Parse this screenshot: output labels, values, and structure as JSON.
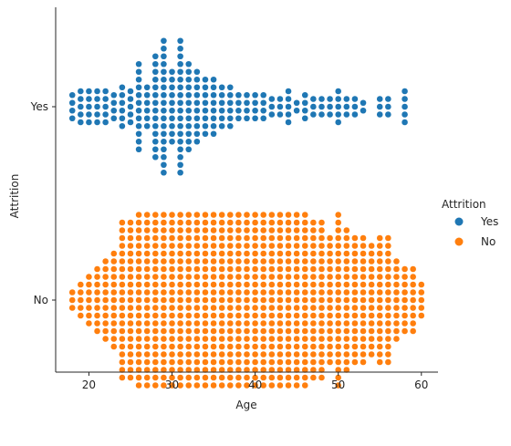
{
  "chart_data": {
    "type": "scatter",
    "style": "swarm",
    "title": "",
    "xlabel": "Age",
    "ylabel": "Attrition",
    "xlim": [
      16,
      62
    ],
    "xticks": [
      20,
      30,
      40,
      50,
      60
    ],
    "categories": [
      "Yes",
      "No"
    ],
    "legend": {
      "title": "Attrition",
      "placement": "right"
    },
    "series": [
      {
        "name": "Yes",
        "color": "#1f77b4",
        "counts_by_age": {
          "18": 4,
          "19": 5,
          "20": 5,
          "21": 5,
          "22": 5,
          "23": 4,
          "24": 6,
          "25": 5,
          "26": 12,
          "27": 6,
          "28": 14,
          "29": 18,
          "30": 10,
          "31": 18,
          "32": 12,
          "33": 10,
          "34": 8,
          "35": 8,
          "36": 6,
          "37": 6,
          "38": 4,
          "39": 4,
          "40": 4,
          "41": 4,
          "42": 3,
          "43": 3,
          "44": 5,
          "45": 2,
          "46": 4,
          "47": 3,
          "48": 3,
          "49": 3,
          "50": 5,
          "51": 3,
          "52": 3,
          "53": 2,
          "55": 3,
          "56": 3,
          "58": 5
        }
      },
      {
        "name": "No",
        "color": "#ff7f0e",
        "counts_by_age": {
          "18": 3,
          "19": 5,
          "20": 7,
          "21": 9,
          "22": 11,
          "23": 13,
          "24": 21,
          "25": 21,
          "26": 23,
          "27": 23,
          "28": 23,
          "29": 23,
          "30": 23,
          "31": 23,
          "32": 23,
          "33": 23,
          "34": 23,
          "35": 23,
          "36": 23,
          "37": 23,
          "38": 23,
          "39": 23,
          "40": 23,
          "41": 23,
          "42": 23,
          "43": 23,
          "44": 23,
          "45": 23,
          "46": 23,
          "47": 21,
          "48": 21,
          "49": 17,
          "50": 23,
          "51": 19,
          "52": 17,
          "53": 17,
          "54": 15,
          "55": 17,
          "56": 17,
          "57": 11,
          "58": 9,
          "59": 9,
          "60": 5
        }
      }
    ]
  }
}
